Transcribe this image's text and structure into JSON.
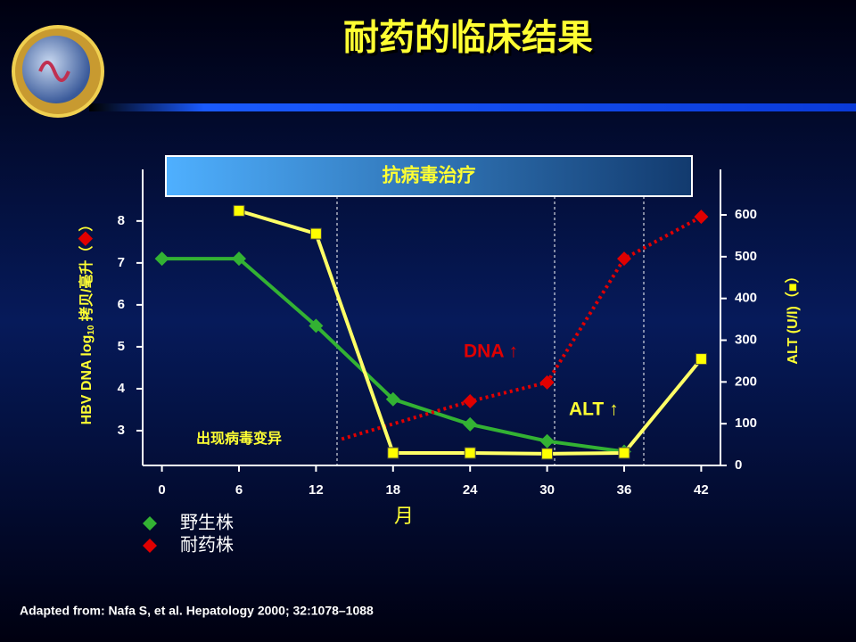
{
  "chart_data": {
    "type": "line",
    "title": "耐药的临床结果",
    "banner": "抗病毒治疗",
    "x_label": "月",
    "y_label": {
      "text": "HBV DNA log",
      "subscript": "10",
      "suffix": " 拷贝/毫升（",
      "close": "）"
    },
    "y2_label": {
      "text": "ALT (U/l)（",
      "close": "）"
    },
    "annotations": [
      "DNA ↑",
      "ALT ↑",
      "出现病毒变异"
    ],
    "xlim": [
      -1.5,
      43.5
    ],
    "xticks": [
      0,
      6,
      12,
      18,
      24,
      30,
      36,
      42
    ],
    "ylim": [
      2.17,
      9.23
    ],
    "yticks": [
      3,
      4,
      5,
      6,
      7,
      8
    ],
    "y2lim": [
      0,
      709
    ],
    "y2ticks": [
      0,
      100,
      200,
      300,
      400,
      500,
      600
    ],
    "series": [
      {
        "name": "野生株",
        "color": "#33b233",
        "marker": "diamond",
        "style": "solid",
        "x": [
          0,
          6,
          12,
          18,
          24,
          30,
          36
        ],
        "values": [
          7.1,
          7.1,
          5.5,
          3.75,
          3.15,
          2.75,
          2.5
        ]
      },
      {
        "name": "耐药株",
        "color": "#e00000",
        "marker": "diamond",
        "style": "dotted",
        "x": [
          14,
          24,
          30,
          36,
          42
        ],
        "values": [
          2.8,
          3.7,
          4.15,
          7.1,
          8.1
        ]
      },
      {
        "color": "#ffff66",
        "marker": "square",
        "style": "solid",
        "axis": "y2",
        "x": [
          6,
          12,
          18,
          24,
          30,
          36,
          42
        ],
        "values": [
          610,
          555,
          30,
          30,
          28,
          30,
          255
        ]
      }
    ],
    "footer": "Adapted from: Nafa S, et al. Hepatology 2000; 32:1078–1088"
  }
}
